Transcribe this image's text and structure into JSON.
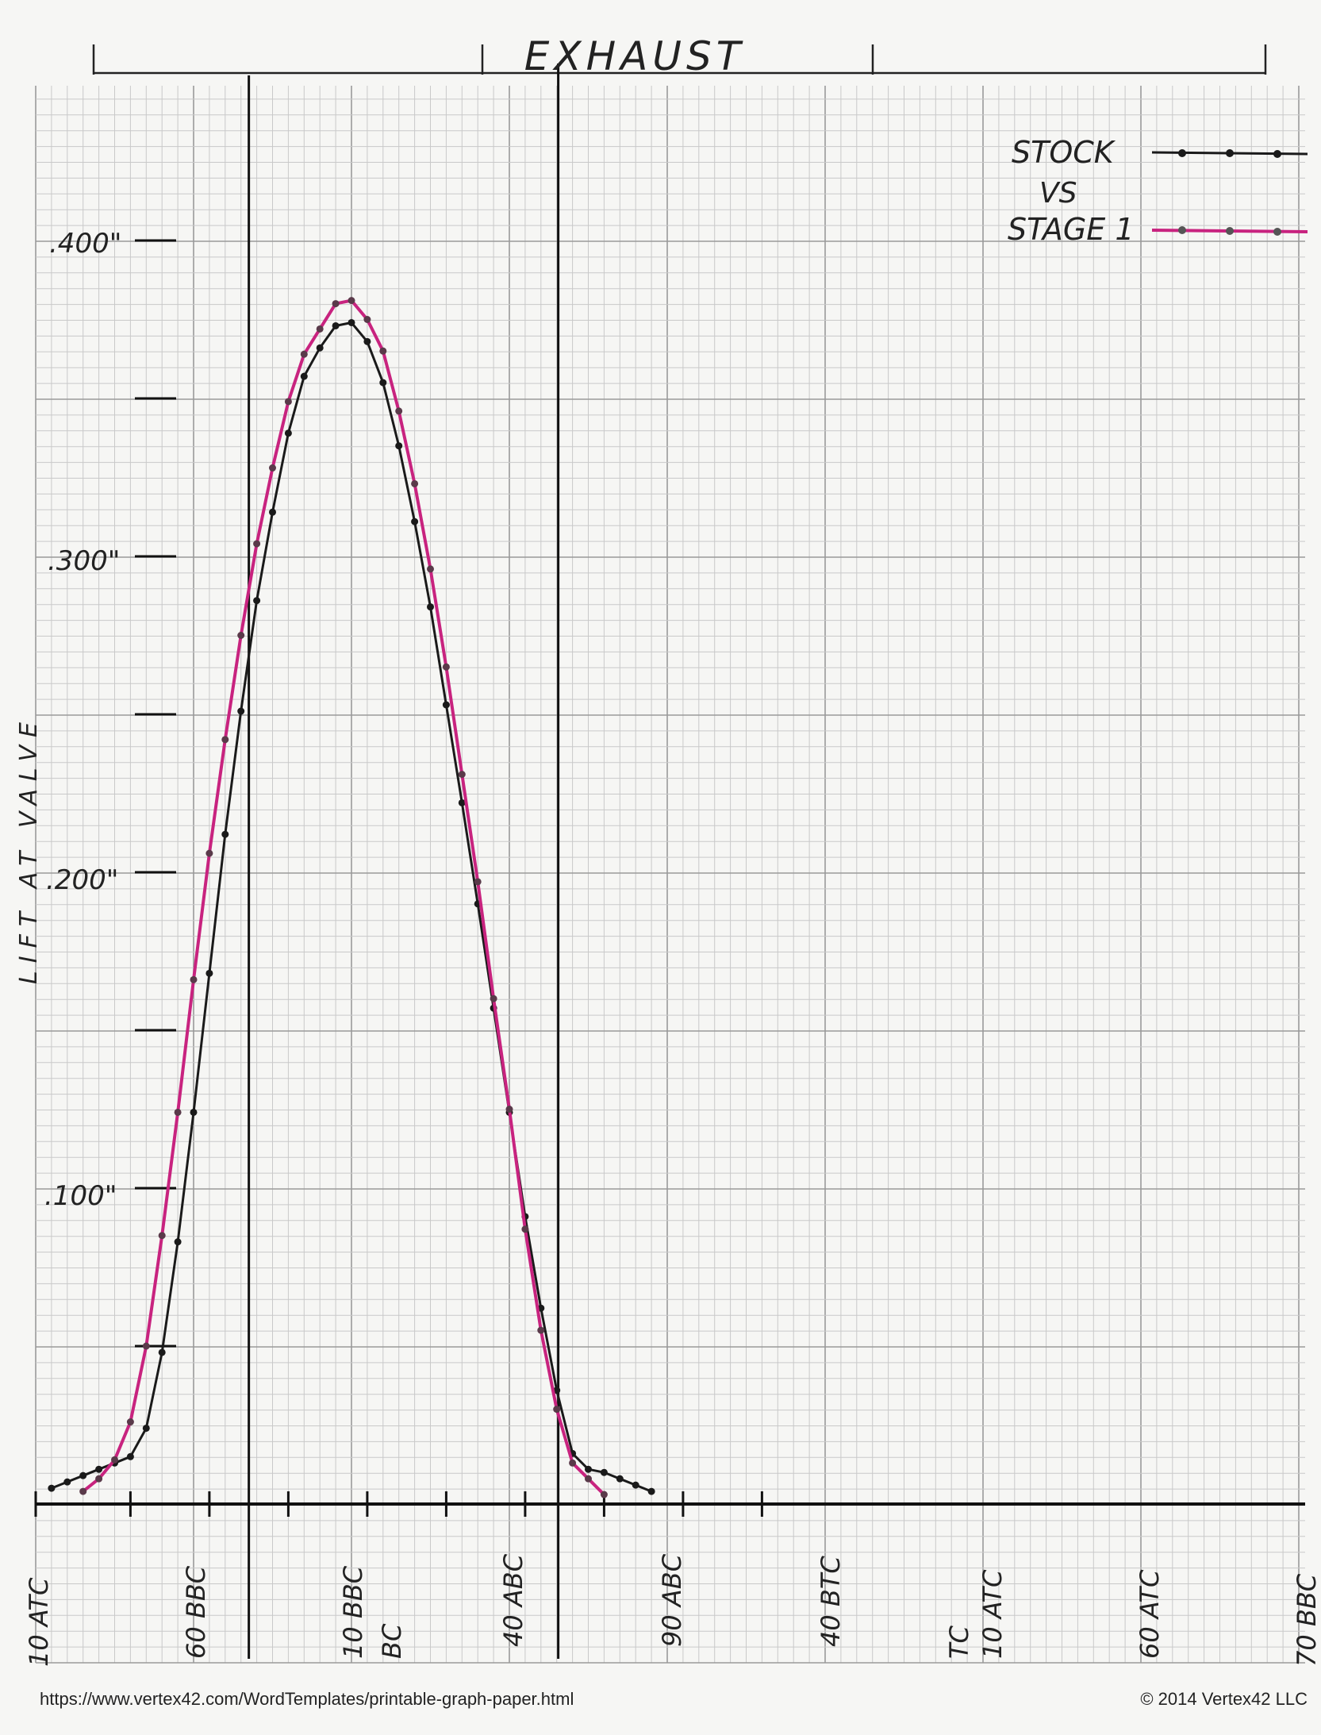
{
  "chart_data": {
    "type": "line",
    "title": "EXHAUST",
    "ylabel": "LIFT AT VALVE",
    "y_tick_labels": [
      ".100\"",
      ".200\"",
      ".300\"",
      ".400\""
    ],
    "x_tick_labels": [
      "10 ATC",
      "60 BBC",
      "10 BBC",
      "BC",
      "40 ABC",
      "90 ABC",
      "40 BTC",
      "TC",
      "10 ATC",
      "60 ATC",
      "70 BBC"
    ],
    "marker_lines": [
      "BC",
      "TC"
    ],
    "ylim": [
      0,
      0.45
    ],
    "grid": true,
    "legend_position": "top-right",
    "legend_middle_text": "VS",
    "series": [
      {
        "name": "STOCK",
        "color": "#1a1a1a",
        "points": [
          [
            -140,
            0.005
          ],
          [
            -130,
            0.007
          ],
          [
            -120,
            0.009
          ],
          [
            -110,
            0.011
          ],
          [
            -100,
            0.013
          ],
          [
            -90,
            0.015
          ],
          [
            -80,
            0.024
          ],
          [
            -70,
            0.048
          ],
          [
            -60,
            0.083
          ],
          [
            -50,
            0.124
          ],
          [
            -40,
            0.168
          ],
          [
            -30,
            0.212
          ],
          [
            -20,
            0.251
          ],
          [
            -10,
            0.286
          ],
          [
            0,
            0.314
          ],
          [
            10,
            0.339
          ],
          [
            20,
            0.357
          ],
          [
            30,
            0.366
          ],
          [
            40,
            0.373
          ],
          [
            50,
            0.374
          ],
          [
            60,
            0.368
          ],
          [
            70,
            0.355
          ],
          [
            80,
            0.335
          ],
          [
            90,
            0.311
          ],
          [
            100,
            0.284
          ],
          [
            110,
            0.253
          ],
          [
            120,
            0.222
          ],
          [
            130,
            0.19
          ],
          [
            140,
            0.157
          ],
          [
            150,
            0.124
          ],
          [
            160,
            0.091
          ],
          [
            170,
            0.062
          ],
          [
            180,
            0.036
          ],
          [
            190,
            0.016
          ],
          [
            200,
            0.011
          ],
          [
            210,
            0.01
          ],
          [
            220,
            0.008
          ],
          [
            230,
            0.006
          ],
          [
            240,
            0.004
          ]
        ]
      },
      {
        "name": "STAGE 1",
        "color": "#c8237f",
        "points": [
          [
            -120,
            0.004
          ],
          [
            -110,
            0.008
          ],
          [
            -100,
            0.014
          ],
          [
            -90,
            0.026
          ],
          [
            -80,
            0.05
          ],
          [
            -70,
            0.085
          ],
          [
            -60,
            0.124
          ],
          [
            -50,
            0.166
          ],
          [
            -40,
            0.206
          ],
          [
            -30,
            0.242
          ],
          [
            -20,
            0.275
          ],
          [
            -10,
            0.304
          ],
          [
            0,
            0.328
          ],
          [
            10,
            0.349
          ],
          [
            20,
            0.364
          ],
          [
            30,
            0.372
          ],
          [
            40,
            0.38
          ],
          [
            50,
            0.381
          ],
          [
            60,
            0.375
          ],
          [
            70,
            0.365
          ],
          [
            80,
            0.346
          ],
          [
            90,
            0.323
          ],
          [
            100,
            0.296
          ],
          [
            110,
            0.265
          ],
          [
            120,
            0.231
          ],
          [
            130,
            0.197
          ],
          [
            140,
            0.16
          ],
          [
            150,
            0.125
          ],
          [
            160,
            0.087
          ],
          [
            170,
            0.055
          ],
          [
            180,
            0.03
          ],
          [
            190,
            0.013
          ],
          [
            200,
            0.008
          ],
          [
            210,
            0.003
          ]
        ]
      }
    ]
  },
  "footer": {
    "url": "https://www.vertex42.com/WordTemplates/printable-graph-paper.html",
    "copyright": "© 2014 Vertex42 LLC"
  }
}
